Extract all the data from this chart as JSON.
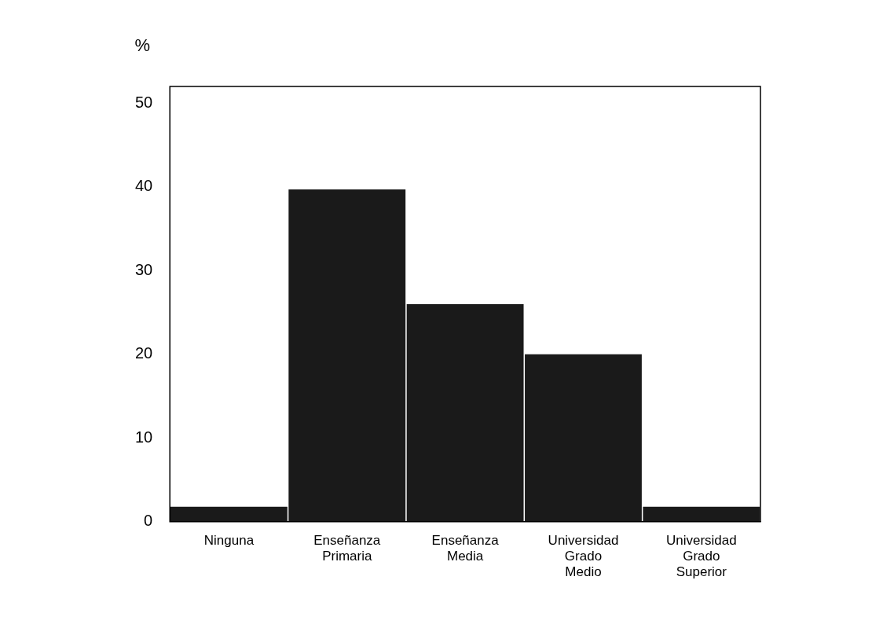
{
  "chart_data": {
    "type": "bar",
    "ylabel": "%",
    "categories": [
      "Ninguna",
      "Enseñanza Primaria",
      "Enseñanza Media",
      "Universidad Grado Medio",
      "Universidad Grado Superior"
    ],
    "values": [
      1.8,
      39.7,
      26,
      20,
      1.8
    ],
    "color": "#1a1a1a",
    "ylim": [
      0,
      52
    ],
    "yticks": [
      0,
      10,
      20,
      30,
      40,
      50
    ],
    "grid": false,
    "legend": false
  }
}
